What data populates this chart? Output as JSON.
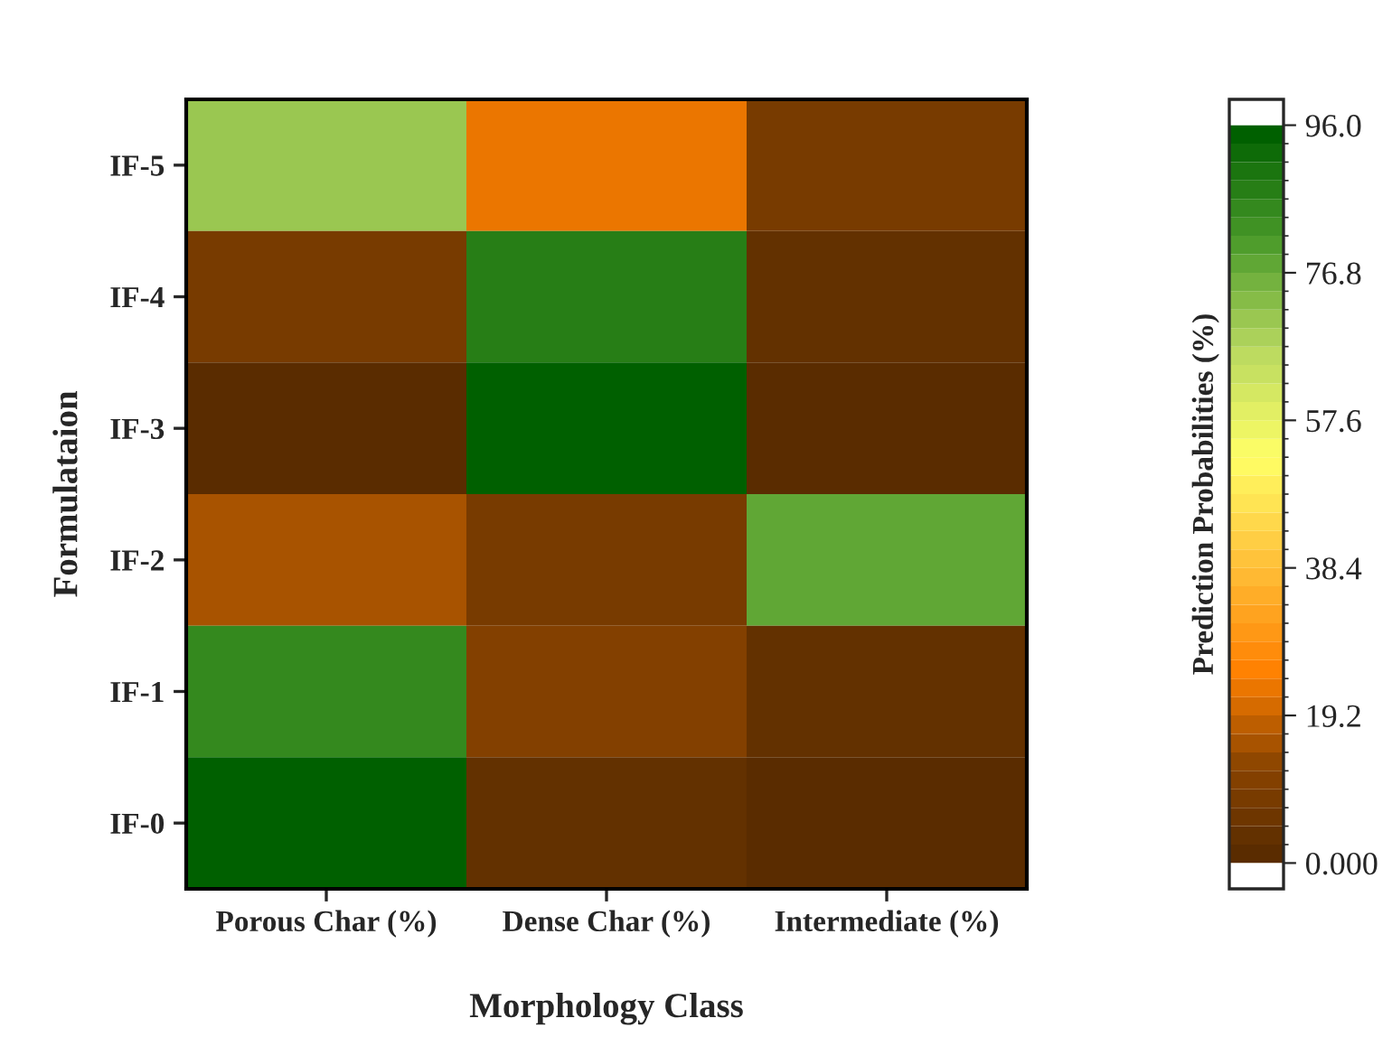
{
  "chart_data": {
    "type": "heatmap",
    "xlabel": "Morphology Class",
    "ylabel": "Formulataion",
    "clabel": "Prediction Probabilities (%)",
    "categories": [
      "Porous Char (%)",
      "Dense Char (%)",
      "Intermediate (%)"
    ],
    "y_categories": [
      "IF-5",
      "IF-4",
      "IF-3",
      "IF-2",
      "IF-1",
      "IF-0"
    ],
    "cells": [
      [
        70,
        22,
        8
      ],
      [
        8,
        88,
        4
      ],
      [
        2,
        96,
        2
      ],
      [
        15,
        8,
        77
      ],
      [
        85,
        11,
        4
      ],
      [
        96,
        3,
        1
      ]
    ],
    "clim": [
      0,
      96
    ],
    "cticks": [
      {
        "value": 0,
        "label": "0.000"
      },
      19.2,
      38.4,
      57.6,
      76.8,
      {
        "value": 96,
        "label": "96.0"
      }
    ]
  }
}
